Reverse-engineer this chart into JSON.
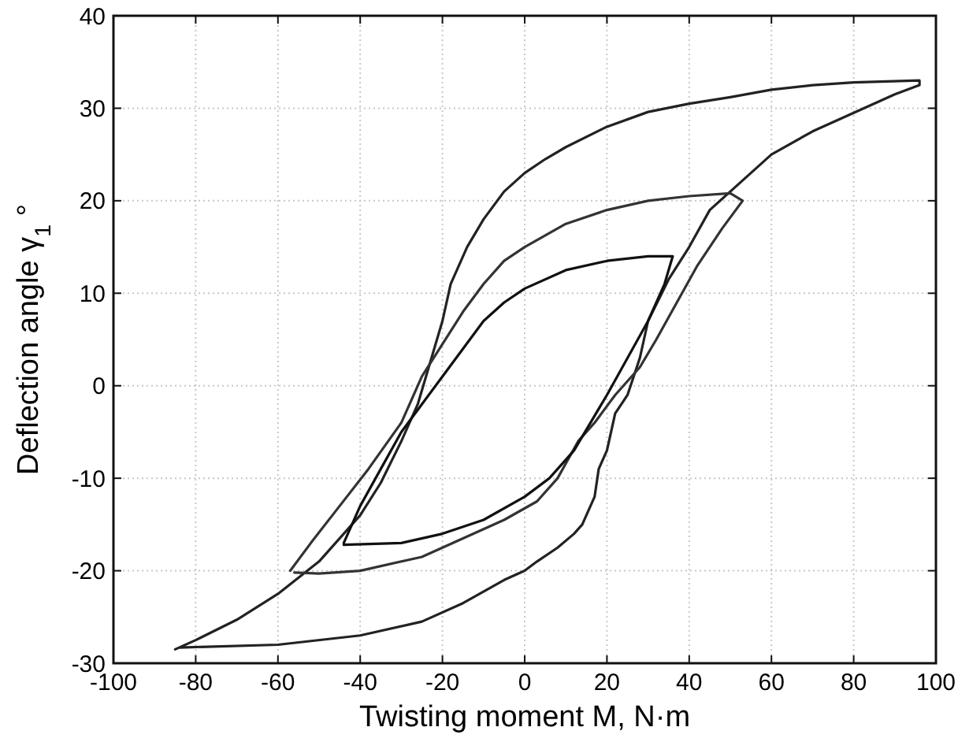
{
  "chart_data": {
    "type": "line",
    "xlabel": "Twisting moment M, N·m",
    "ylabel": "Deflection angle γ$_{1}$ °",
    "xlim": [
      -100,
      100
    ],
    "xticks": [
      -100,
      -80,
      -60,
      -40,
      -20,
      0,
      20,
      40,
      60,
      80,
      100
    ],
    "ylim": [
      -30,
      40
    ],
    "yticks": [
      -30,
      -20,
      -10,
      0,
      10,
      20,
      30,
      40
    ],
    "grid": true,
    "line_style": "solid",
    "marker": "none",
    "series": [
      {
        "color": "#222222",
        "x": [
          -85,
          -80,
          -70,
          -60,
          -50,
          -40,
          -35,
          -30,
          -26,
          -24,
          -22,
          -20,
          -18,
          -14,
          -10,
          -5,
          0,
          5,
          10,
          20,
          30,
          40,
          50,
          60,
          70,
          80,
          96,
          96,
          90,
          80,
          70,
          60,
          55,
          50,
          45,
          40,
          35,
          30,
          28,
          25,
          22,
          20,
          18,
          17,
          14,
          12,
          8,
          3,
          0,
          -5,
          -15,
          -25,
          -40,
          -60,
          -84
        ],
        "values": [
          -28.5,
          -27.5,
          -25.3,
          -22.5,
          -19,
          -14,
          -10.5,
          -6,
          -2,
          1,
          4,
          7,
          11,
          15,
          18,
          21,
          23,
          24.5,
          25.8,
          28,
          29.6,
          30.5,
          31.2,
          32,
          32.5,
          32.8,
          33,
          32.5,
          31.5,
          29.5,
          27.5,
          25,
          23,
          21,
          19,
          15,
          11.5,
          7,
          3,
          -1,
          -3,
          -7,
          -9,
          -12,
          -15,
          -16,
          -17.5,
          -19,
          -20,
          -21,
          -23.5,
          -25.5,
          -27,
          -28,
          -28.3
        ]
      },
      {
        "color": "#333333",
        "x": [
          -57,
          -52,
          -45,
          -38,
          -30,
          -25,
          -20,
          -15,
          -10,
          -5,
          0,
          10,
          20,
          30,
          40,
          50,
          53,
          48,
          42,
          37,
          32,
          28,
          22,
          17,
          13,
          8,
          3,
          -5,
          -15,
          -25,
          -40,
          -50,
          -56
        ],
        "values": [
          -20,
          -17,
          -13,
          -9,
          -4,
          1,
          4.5,
          8,
          11,
          13.5,
          15,
          17.5,
          19,
          20,
          20.5,
          20.8,
          20,
          17,
          13,
          9,
          5,
          2,
          -1,
          -4,
          -6,
          -10,
          -12.5,
          -14.5,
          -16.5,
          -18.5,
          -20,
          -20.3,
          -20.2
        ]
      },
      {
        "color": "#111111",
        "x": [
          -44,
          -40,
          -35,
          -30,
          -25,
          -20,
          -15,
          -10,
          -5,
          0,
          10,
          20,
          30,
          36,
          34,
          30,
          25,
          20,
          16,
          12,
          6,
          0,
          -10,
          -20,
          -30,
          -44
        ],
        "values": [
          -17,
          -13,
          -9,
          -5,
          -2,
          1,
          4,
          7,
          9,
          10.5,
          12.5,
          13.5,
          14,
          14,
          11,
          7,
          3,
          -1,
          -4,
          -7,
          -10,
          -12,
          -14.5,
          -16,
          -17,
          -17.2
        ]
      }
    ]
  }
}
